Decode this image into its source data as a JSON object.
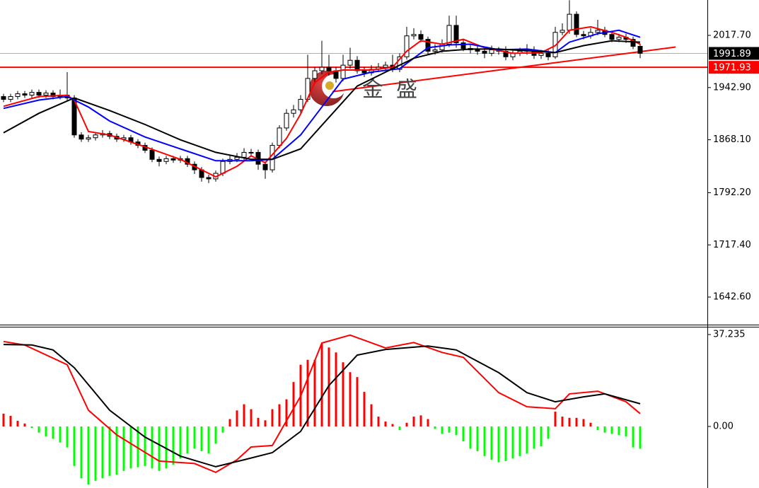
{
  "chart_data": [
    {
      "type": "candlestick",
      "open": [
        1930,
        1926,
        1930,
        1934,
        1932,
        1936,
        1932,
        1935,
        1930,
        1932,
        1928,
        1875,
        1869,
        1871,
        1875,
        1877,
        1873,
        1869,
        1871,
        1865,
        1860,
        1853,
        1840,
        1837,
        1841,
        1839,
        1841,
        1833,
        1825,
        1814,
        1812,
        1820,
        1837,
        1840,
        1843,
        1850,
        1850,
        1833,
        1825,
        1860,
        1885,
        1906,
        1911,
        1926,
        1956,
        1967,
        1972,
        1967,
        1956,
        1975,
        1982,
        1967,
        1964,
        1969,
        1972,
        1975,
        1969,
        1987,
        2017,
        2019,
        2012,
        1995,
        1997,
        2005,
        2032,
        2007,
        1999,
        1997,
        1995,
        1992,
        1997,
        1995,
        1987,
        1992,
        1995,
        1997,
        1989,
        1992,
        1987,
        2022,
        2025,
        2048,
        2019,
        2017,
        2022,
        2025,
        2019,
        2012,
        2015,
        2012,
        2002
      ],
      "high": [
        1934,
        1934,
        1938,
        1938,
        1940,
        1940,
        1939,
        1939,
        1940,
        1965,
        1932,
        1879,
        1875,
        1879,
        1882,
        1881,
        1877,
        1875,
        1875,
        1869,
        1864,
        1857,
        1844,
        1845,
        1845,
        1845,
        1845,
        1837,
        1829,
        1818,
        1824,
        1841,
        1846,
        1849,
        1856,
        1855,
        1854,
        1837,
        1864,
        1889,
        1912,
        1918,
        1932,
        1990,
        1972,
        2010,
        1990,
        1972,
        1990,
        2000,
        1988,
        1972,
        1975,
        1978,
        1980,
        1990,
        1992,
        2030,
        2028,
        2025,
        2016,
        2005,
        2012,
        2046,
        2046,
        2012,
        2005,
        2003,
        2000,
        2003,
        2001,
        2002,
        1998,
        2000,
        2005,
        2002,
        1997,
        1997,
        2030,
        2035,
        2068,
        2052,
        2024,
        2028,
        2040,
        2030,
        2024,
        2020,
        2020,
        2016,
        2006
      ],
      "low": [
        1922,
        1922,
        1926,
        1928,
        1928,
        1928,
        1928,
        1926,
        1926,
        1924,
        1871,
        1865,
        1865,
        1867,
        1871,
        1869,
        1865,
        1865,
        1861,
        1856,
        1849,
        1836,
        1830,
        1833,
        1835,
        1835,
        1829,
        1819,
        1808,
        1806,
        1808,
        1816,
        1833,
        1836,
        1839,
        1845,
        1825,
        1812,
        1821,
        1856,
        1881,
        1900,
        1905,
        1922,
        1950,
        1962,
        1960,
        1950,
        1952,
        1970,
        1963,
        1958,
        1960,
        1965,
        1968,
        1965,
        1965,
        1983,
        2012,
        2008,
        1991,
        1990,
        1993,
        2001,
        2000,
        1995,
        1992,
        1990,
        1985,
        1988,
        1990,
        1982,
        1982,
        1988,
        1990,
        1984,
        1984,
        1982,
        1984,
        2018,
        2020,
        2015,
        2012,
        2013,
        2018,
        2015,
        2008,
        2008,
        2007,
        1998,
        1985
      ],
      "close": [
        1926,
        1930,
        1934,
        1932,
        1936,
        1932,
        1935,
        1930,
        1932,
        1928,
        1875,
        1869,
        1871,
        1875,
        1877,
        1873,
        1869,
        1871,
        1865,
        1860,
        1853,
        1840,
        1837,
        1841,
        1839,
        1841,
        1833,
        1825,
        1814,
        1812,
        1820,
        1837,
        1840,
        1843,
        1850,
        1850,
        1833,
        1825,
        1860,
        1885,
        1906,
        1911,
        1926,
        1956,
        1967,
        1972,
        1967,
        1956,
        1975,
        1982,
        1967,
        1964,
        1969,
        1972,
        1975,
        1969,
        1987,
        2017,
        2019,
        2012,
        1995,
        1997,
        2005,
        2032,
        2007,
        1999,
        1997,
        1995,
        1992,
        1997,
        1995,
        1987,
        1992,
        1995,
        1997,
        1989,
        1992,
        1987,
        2022,
        2025,
        2048,
        2019,
        2017,
        2022,
        2025,
        2019,
        2012,
        2015,
        2012,
        2002,
        1992
      ],
      "lines": [
        {
          "color": "#ff0000",
          "x": [
            0,
            5,
            9,
            10,
            12,
            15,
            20,
            25,
            28,
            30,
            33,
            35,
            37,
            40,
            42,
            44,
            46,
            48,
            52,
            55,
            57,
            59,
            62,
            65,
            68,
            72,
            76,
            78,
            80,
            83,
            86,
            88,
            90
          ],
          "values": [
            1916,
            1930,
            1932,
            1925,
            1880,
            1875,
            1858,
            1840,
            1825,
            1815,
            1830,
            1845,
            1835,
            1870,
            1905,
            1950,
            1965,
            1968,
            1968,
            1972,
            1995,
            2010,
            2005,
            2012,
            2000,
            1992,
            1993,
            2003,
            2025,
            2030,
            2022,
            2015,
            2005
          ]
        },
        {
          "color": "#0000ff",
          "x": [
            0,
            5,
            9,
            12,
            15,
            20,
            25,
            30,
            35,
            38,
            42,
            45,
            48,
            52,
            56,
            60,
            63,
            66,
            70,
            74,
            78,
            80,
            84,
            87,
            90
          ],
          "values": [
            1913,
            1925,
            1930,
            1915,
            1895,
            1872,
            1855,
            1838,
            1838,
            1840,
            1875,
            1915,
            1955,
            1965,
            1970,
            2000,
            2004,
            2005,
            1997,
            1998,
            1993,
            2008,
            2020,
            2025,
            2015
          ]
        },
        {
          "color": "#000000",
          "x": [
            0,
            5,
            10,
            15,
            20,
            25,
            30,
            35,
            38,
            42,
            46,
            50,
            54,
            58,
            62,
            66,
            70,
            75,
            78,
            82,
            86,
            90
          ],
          "values": [
            1878,
            1906,
            1928,
            1910,
            1890,
            1868,
            1850,
            1840,
            1840,
            1855,
            1900,
            1945,
            1965,
            1985,
            1995,
            1998,
            1998,
            1995,
            1993,
            2003,
            2010,
            2008
          ]
        }
      ],
      "hlines": [
        {
          "value": 1991.89,
          "color": "#b0b0b0",
          "label_bg": "#000000"
        },
        {
          "value": 1971.93,
          "color": "#ff0000",
          "label_bg": "#ff0000"
        }
      ],
      "trendline": {
        "color": "#ff0000",
        "x": [
          46.5,
          95
        ],
        "values": [
          1937,
          2001
        ]
      },
      "watermark": [
        "金",
        "盛"
      ],
      "ylim": [
        1602.1,
        2068.4
      ],
      "yticks": [
        {
          "value": 2017.7,
          "label": "2017.70"
        },
        {
          "value": 1942.9,
          "label": "1942.90"
        },
        {
          "value": 1868.1,
          "label": "1868.10"
        },
        {
          "value": 1792.2,
          "label": "1792.20"
        },
        {
          "value": 1717.4,
          "label": "1717.40"
        },
        {
          "value": 1642.6,
          "label": "1642.60"
        }
      ]
    },
    {
      "type": "macd",
      "values": [
        5.2,
        4.3,
        2.3,
        1.2,
        -0.6,
        -2.5,
        -4,
        -5,
        -6.5,
        -8.5,
        -16,
        -21,
        -23.5,
        -22,
        -21,
        -20,
        -19.5,
        -18,
        -17,
        -16.5,
        -16,
        -17,
        -18,
        -17,
        -15.5,
        -13,
        -11,
        -9,
        -10,
        -11,
        -7,
        -2.5,
        3,
        6.5,
        9,
        7,
        3.5,
        2.5,
        7,
        9,
        11,
        18,
        25,
        27,
        27,
        33.5,
        32,
        30,
        26,
        22,
        20,
        14,
        9,
        4,
        2,
        1,
        -1.5,
        1.5,
        4,
        4.5,
        3,
        -1,
        -3,
        -2.5,
        -3.5,
        -6,
        -9,
        -10,
        -12,
        -13.5,
        -14.5,
        -14,
        -13,
        -12,
        -11,
        -9,
        -8,
        -5,
        6,
        4,
        3.5,
        3.5,
        3,
        1.5,
        -1.5,
        -2.5,
        -3,
        -3.5,
        -4,
        -8.5,
        -9
      ],
      "color_up": "#ff0000",
      "color_down": "#00ff00",
      "lines": [
        {
          "color": "#ff0000",
          "x": [
            0,
            3,
            9,
            12,
            16,
            22,
            27,
            30,
            33,
            35,
            38,
            42,
            45,
            49,
            54,
            58,
            62,
            65,
            70,
            74,
            78,
            80,
            84,
            88,
            90
          ],
          "values": [
            34.4,
            33,
            25,
            6.6,
            -3.4,
            -14,
            -15,
            -18.6,
            -13.5,
            -8.3,
            -7.7,
            12.3,
            33.8,
            37,
            31.8,
            34,
            30,
            28,
            13.7,
            8,
            7.2,
            13.2,
            14.3,
            10,
            5.2
          ]
        },
        {
          "color": "#000000",
          "x": [
            0,
            4,
            7,
            10,
            15,
            20,
            25,
            30,
            34,
            38,
            42,
            46,
            50,
            54,
            60,
            64,
            70,
            74,
            78,
            82,
            85,
            90
          ],
          "values": [
            33.2,
            33,
            31,
            23.8,
            6.6,
            -4.3,
            -12,
            -16.3,
            -13.5,
            -10.6,
            -2,
            16.6,
            28.9,
            31.2,
            32.6,
            31,
            21.8,
            13.7,
            10,
            12,
            13.2,
            9.2
          ]
        }
      ],
      "ylim": [
        -24.92,
        40.39
      ],
      "yticks": [
        37.235,
        {
          "value": 0,
          "label": "0.00"
        }
      ]
    }
  ]
}
